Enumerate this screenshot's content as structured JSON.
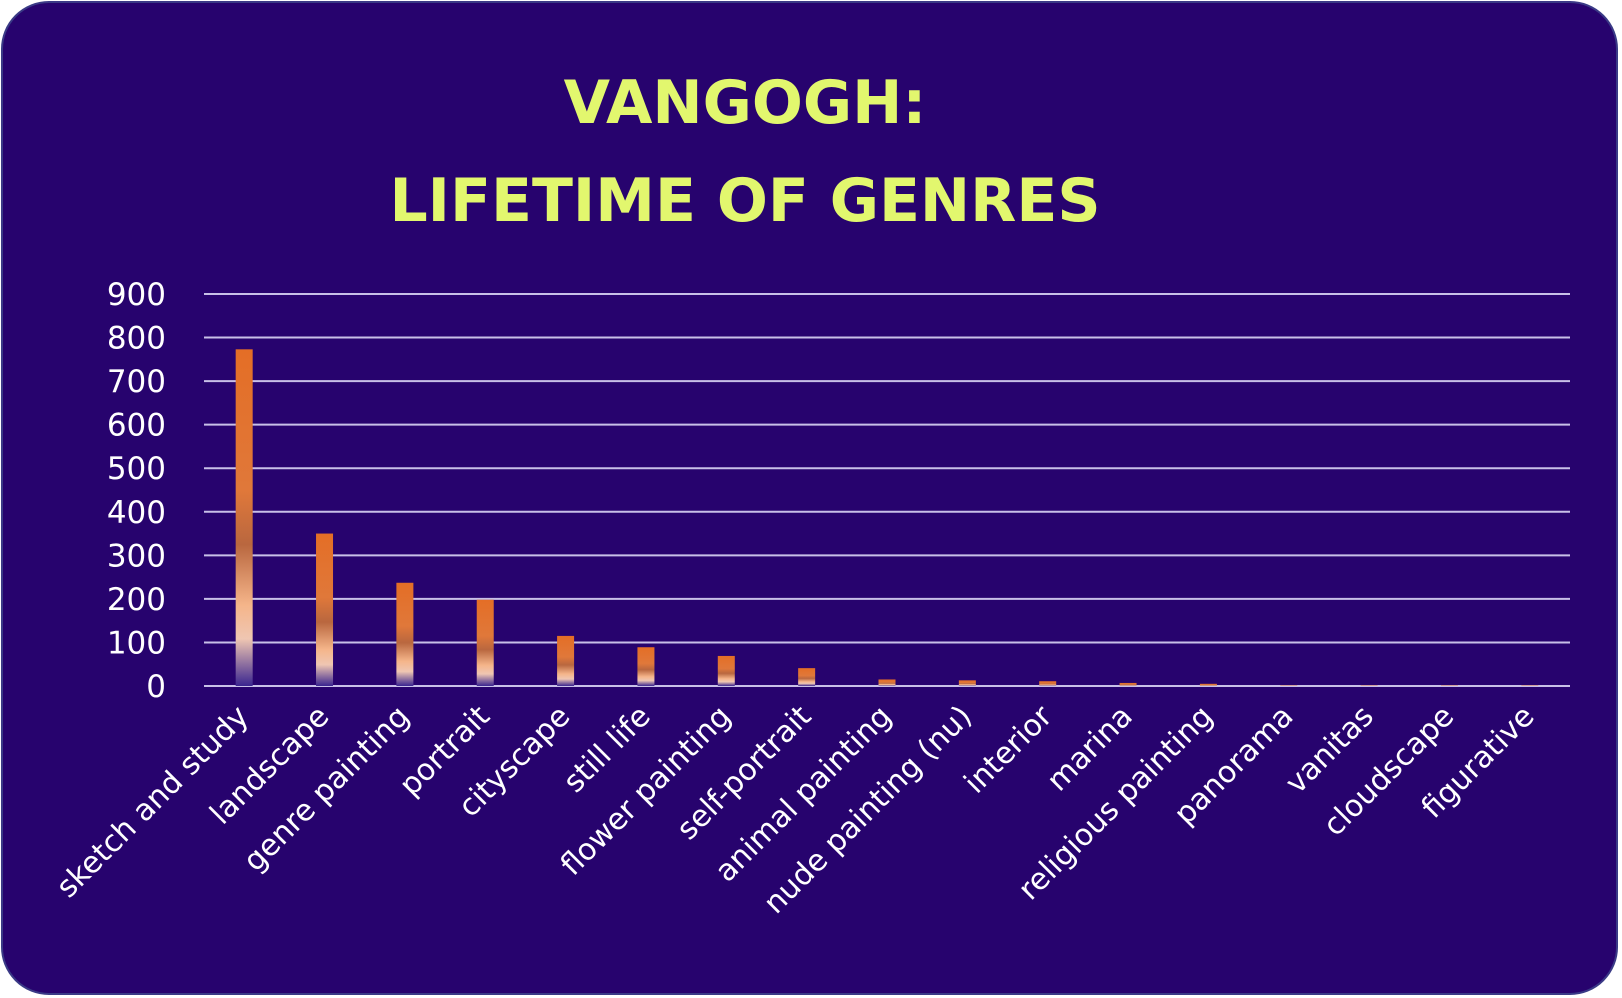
{
  "colors": {
    "background": "#27036e",
    "title": "#e2f76e",
    "gridline": "#c8c0e8",
    "text": "#ffffff",
    "bar_top": "#e46e26",
    "bar_mid": "#f5b58a",
    "bar_base": "#3a2590"
  },
  "chart_data": {
    "type": "bar",
    "title_lines": [
      "VANGOGH:",
      "LIFETIME OF GENRES"
    ],
    "xlabel": "",
    "ylabel": "",
    "ylim": [
      0,
      900
    ],
    "yticks": [
      0,
      100,
      200,
      300,
      400,
      500,
      600,
      700,
      800,
      900
    ],
    "grid": true,
    "legend": "none",
    "categories": [
      "sketch and study",
      "landscape",
      "genre painting",
      "portrait",
      "cityscape",
      "still life",
      "flower painting",
      "self-portrait",
      "animal painting",
      "nude painting (nu)",
      "interior",
      "marina",
      "religious painting",
      "panorama",
      "vanitas",
      "cloudscape",
      "figurative"
    ],
    "values": [
      773,
      350,
      237,
      198,
      115,
      89,
      69,
      41,
      15,
      13,
      11,
      7,
      5,
      1,
      1,
      1,
      1
    ]
  }
}
